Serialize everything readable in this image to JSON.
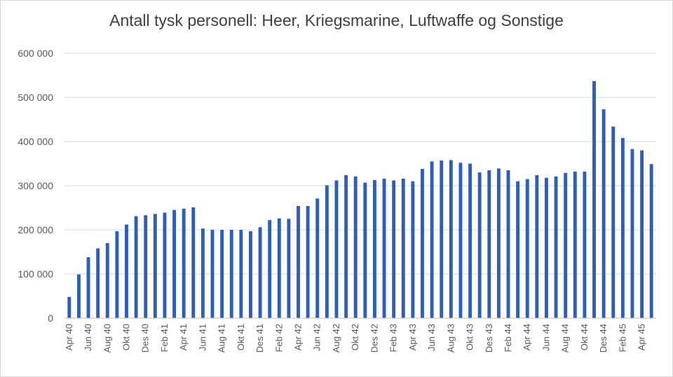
{
  "chart_data": {
    "type": "bar",
    "title": "Antall tysk personell: Heer, Kriegsmarine, Luftwaffe og Sonstige",
    "xlabel": "",
    "ylabel": "",
    "ylim": [
      0,
      600000
    ],
    "yticks": [
      "0",
      "100 000",
      "200 000",
      "300 000",
      "400 000",
      "500 000",
      "600 000"
    ],
    "grid": true,
    "color": "#2e5fb7",
    "categories": [
      "Apr 40",
      "Mai 40",
      "Jun 40",
      "Jul 40",
      "Aug 40",
      "Sep 40",
      "Okt 40",
      "Nov 40",
      "Des 40",
      "Jan 41",
      "Feb 41",
      "Mar 41",
      "Apr 41",
      "Mai 41",
      "Jun 41",
      "Jul 41",
      "Aug 41",
      "Sep 41",
      "Okt 41",
      "Nov 41",
      "Des 41",
      "Jan 42",
      "Feb 42",
      "Mar 42",
      "Apr 42",
      "Mai 42",
      "Jun 42",
      "Jul 42",
      "Aug 42",
      "Sep 42",
      "Okt 42",
      "Nov 42",
      "Des 42",
      "Jan 43",
      "Feb 43",
      "Mar 43",
      "Apr 43",
      "Mai 43",
      "Jun 43",
      "Jul 43",
      "Aug 43",
      "Sep 43",
      "Okt 43",
      "Nov 43",
      "Des 43",
      "Jan 44",
      "Feb 44",
      "Mar 44",
      "Apr 44",
      "Mai 44",
      "Jun 44",
      "Jul 44",
      "Aug 44",
      "Sep 44",
      "Okt 44",
      "Nov 44",
      "Des 44",
      "Jan 45",
      "Feb 45",
      "Mar 45",
      "Apr 45",
      "Mai 45"
    ],
    "visible_xticks": [
      "Apr 40",
      "Jun 40",
      "Aug 40",
      "Okt 40",
      "Des 40",
      "Feb 41",
      "Apr 41",
      "Jun 41",
      "Aug 41",
      "Okt 41",
      "Des 41",
      "Feb 42",
      "Apr 42",
      "Jun 42",
      "Aug 42",
      "Okt 42",
      "Des 42",
      "Feb 43",
      "Apr 43",
      "Jun 43",
      "Aug 43",
      "Okt 43",
      "Des 43",
      "Feb 44",
      "Apr 44",
      "Jun 44",
      "Aug 44",
      "Okt 44",
      "Des 44",
      "Feb 45",
      "Apr 45"
    ],
    "values": [
      48000,
      99000,
      138000,
      158000,
      170000,
      197000,
      212000,
      231000,
      233000,
      236000,
      239000,
      245000,
      248000,
      251000,
      203000,
      200000,
      200000,
      200000,
      200000,
      197000,
      206000,
      222000,
      226000,
      225000,
      254000,
      254000,
      271000,
      301000,
      312000,
      324000,
      321000,
      307000,
      313000,
      316000,
      312000,
      316000,
      310000,
      338000,
      355000,
      357000,
      358000,
      352000,
      350000,
      330000,
      335000,
      339000,
      335000,
      310000,
      315000,
      324000,
      318000,
      321000,
      329000,
      332000,
      332000,
      537000,
      473000,
      434000,
      408000,
      383000,
      380000,
      349000
    ]
  }
}
